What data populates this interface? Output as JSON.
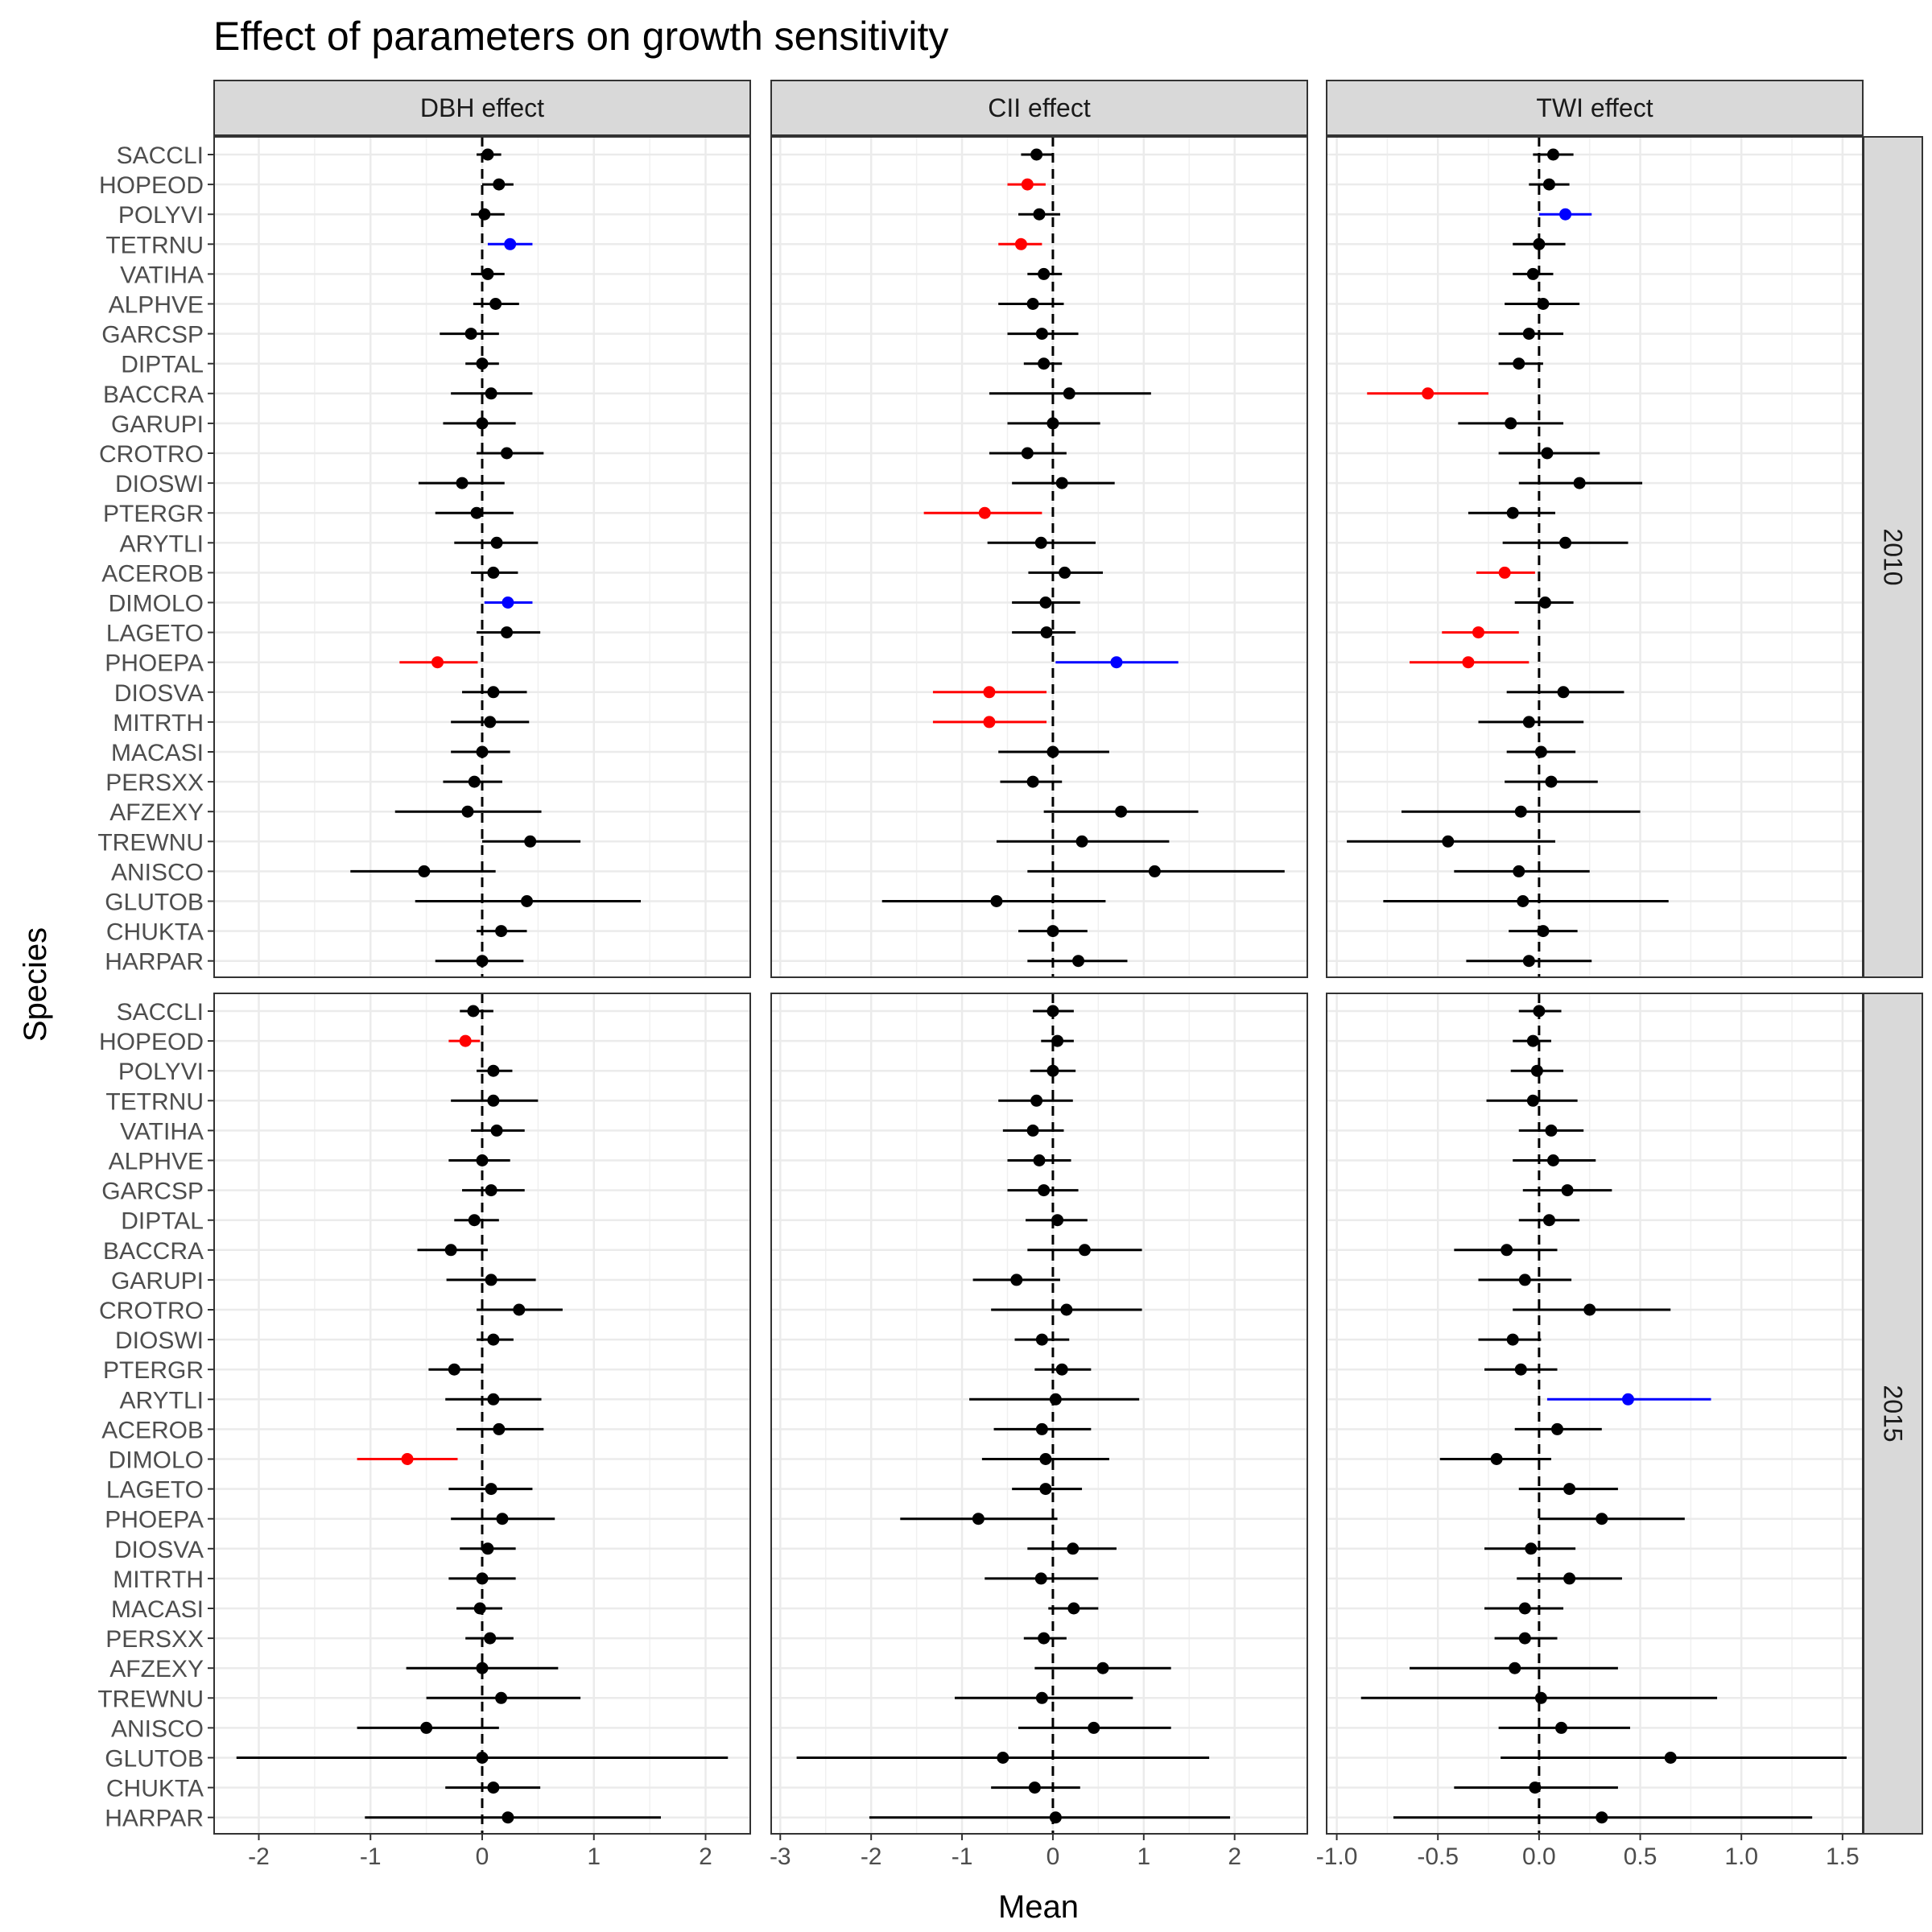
{
  "chart_data": {
    "type": "forest-plot",
    "title": "Effect of parameters on growth sensitivity",
    "xlabel": "Mean",
    "ylabel": "Species",
    "grid": true,
    "reference_line_x": 0,
    "species": [
      "SACCLI",
      "HOPEOD",
      "POLYVI",
      "TETRNU",
      "VATIHA",
      "ALPHVE",
      "GARCSP",
      "DIPTAL",
      "BACCRA",
      "GARUPI",
      "CROTRO",
      "DIOSWI",
      "PTERGR",
      "ARYTLI",
      "ACEROB",
      "DIMOLO",
      "LAGETO",
      "PHOEPA",
      "DIOSVA",
      "MITRTH",
      "MACASI",
      "PERSXX",
      "AFZEXY",
      "TREWNU",
      "ANISCO",
      "GLUTOB",
      "CHUKTA",
      "HARPAR"
    ],
    "colors": {
      "none": "#000000",
      "negative": "#ff0000",
      "positive": "#0000ff"
    },
    "columns": [
      {
        "label": "DBH effect",
        "xlim": [
          -2.4,
          2.4
        ],
        "ticks": [
          -2,
          -1,
          0,
          1,
          2
        ],
        "tick_labels": [
          "-2",
          "-1",
          "0",
          "1",
          "2"
        ]
      },
      {
        "label": "CII effect",
        "xlim": [
          -3.1,
          2.8
        ],
        "ticks": [
          -3,
          -2,
          -1,
          0,
          1,
          2
        ],
        "tick_labels": [
          "-3",
          "-2",
          "-1",
          "0",
          "1",
          "2"
        ]
      },
      {
        "label": "TWI effect",
        "xlim": [
          -1.05,
          1.6
        ],
        "ticks": [
          -1,
          -0.5,
          0,
          0.5,
          1,
          1.5
        ],
        "tick_labels": [
          "-1.0",
          "-0.5",
          "0.0",
          "0.5",
          "1.0",
          "1.5"
        ]
      }
    ],
    "rows": [
      {
        "label": "2010"
      },
      {
        "label": "2015"
      }
    ],
    "panels": [
      {
        "row": 0,
        "col": 0,
        "points": [
          [
            0.05,
            -0.05,
            0.17,
            "none"
          ],
          [
            0.15,
            0.0,
            0.28,
            "none"
          ],
          [
            0.02,
            -0.1,
            0.2,
            "none"
          ],
          [
            0.25,
            0.05,
            0.45,
            "positive"
          ],
          [
            0.05,
            -0.1,
            0.2,
            "none"
          ],
          [
            0.12,
            -0.08,
            0.33,
            "none"
          ],
          [
            -0.1,
            -0.38,
            0.15,
            "none"
          ],
          [
            0.0,
            -0.15,
            0.15,
            "none"
          ],
          [
            0.08,
            -0.28,
            0.45,
            "none"
          ],
          [
            0.0,
            -0.35,
            0.3,
            "none"
          ],
          [
            0.22,
            -0.05,
            0.55,
            "none"
          ],
          [
            -0.18,
            -0.57,
            0.2,
            "none"
          ],
          [
            -0.05,
            -0.42,
            0.28,
            "none"
          ],
          [
            0.13,
            -0.25,
            0.5,
            "none"
          ],
          [
            0.1,
            -0.1,
            0.32,
            "none"
          ],
          [
            0.23,
            0.02,
            0.45,
            "positive"
          ],
          [
            0.22,
            -0.05,
            0.52,
            "none"
          ],
          [
            -0.4,
            -0.74,
            -0.04,
            "negative"
          ],
          [
            0.1,
            -0.18,
            0.4,
            "none"
          ],
          [
            0.07,
            -0.28,
            0.42,
            "none"
          ],
          [
            0.0,
            -0.28,
            0.25,
            "none"
          ],
          [
            -0.07,
            -0.35,
            0.18,
            "none"
          ],
          [
            -0.13,
            -0.78,
            0.53,
            "none"
          ],
          [
            0.43,
            0.0,
            0.88,
            "none"
          ],
          [
            -0.52,
            -1.18,
            0.12,
            "none"
          ],
          [
            0.4,
            -0.6,
            1.42,
            "none"
          ],
          [
            0.17,
            -0.05,
            0.4,
            "none"
          ],
          [
            0.0,
            -0.42,
            0.37,
            "none"
          ]
        ]
      },
      {
        "row": 0,
        "col": 1,
        "points": [
          [
            -0.18,
            -0.35,
            0.0,
            "none"
          ],
          [
            -0.28,
            -0.5,
            -0.08,
            "negative"
          ],
          [
            -0.15,
            -0.38,
            0.08,
            "none"
          ],
          [
            -0.35,
            -0.6,
            -0.12,
            "negative"
          ],
          [
            -0.1,
            -0.28,
            0.1,
            "none"
          ],
          [
            -0.22,
            -0.6,
            0.12,
            "none"
          ],
          [
            -0.12,
            -0.5,
            0.28,
            "none"
          ],
          [
            -0.1,
            -0.32,
            0.1,
            "none"
          ],
          [
            0.18,
            -0.7,
            1.08,
            "none"
          ],
          [
            0.0,
            -0.5,
            0.52,
            "none"
          ],
          [
            -0.28,
            -0.7,
            0.15,
            "none"
          ],
          [
            0.1,
            -0.45,
            0.68,
            "none"
          ],
          [
            -0.75,
            -1.42,
            -0.12,
            "negative"
          ],
          [
            -0.13,
            -0.72,
            0.47,
            "none"
          ],
          [
            0.13,
            -0.27,
            0.55,
            "none"
          ],
          [
            -0.08,
            -0.45,
            0.3,
            "none"
          ],
          [
            -0.07,
            -0.45,
            0.25,
            "none"
          ],
          [
            0.7,
            0.03,
            1.38,
            "positive"
          ],
          [
            -0.7,
            -1.32,
            -0.07,
            "negative"
          ],
          [
            -0.7,
            -1.32,
            -0.07,
            "negative"
          ],
          [
            0.0,
            -0.6,
            0.62,
            "none"
          ],
          [
            -0.22,
            -0.58,
            0.1,
            "none"
          ],
          [
            0.75,
            -0.1,
            1.6,
            "none"
          ],
          [
            0.32,
            -0.62,
            1.28,
            "none"
          ],
          [
            1.12,
            -0.28,
            2.55,
            "none"
          ],
          [
            -0.62,
            -1.88,
            0.58,
            "none"
          ],
          [
            0.0,
            -0.38,
            0.38,
            "none"
          ],
          [
            0.28,
            -0.28,
            0.82,
            "none"
          ]
        ]
      },
      {
        "row": 0,
        "col": 2,
        "points": [
          [
            0.07,
            -0.03,
            0.17,
            "none"
          ],
          [
            0.05,
            -0.05,
            0.15,
            "none"
          ],
          [
            0.13,
            0.0,
            0.26,
            "positive"
          ],
          [
            0.0,
            -0.13,
            0.13,
            "none"
          ],
          [
            -0.03,
            -0.13,
            0.07,
            "none"
          ],
          [
            0.02,
            -0.17,
            0.2,
            "none"
          ],
          [
            -0.05,
            -0.2,
            0.12,
            "none"
          ],
          [
            -0.1,
            -0.2,
            0.02,
            "none"
          ],
          [
            -0.55,
            -0.85,
            -0.25,
            "negative"
          ],
          [
            -0.14,
            -0.4,
            0.12,
            "none"
          ],
          [
            0.04,
            -0.2,
            0.3,
            "none"
          ],
          [
            0.2,
            -0.1,
            0.51,
            "none"
          ],
          [
            -0.13,
            -0.35,
            0.08,
            "none"
          ],
          [
            0.13,
            -0.18,
            0.44,
            "none"
          ],
          [
            -0.17,
            -0.31,
            -0.02,
            "negative"
          ],
          [
            0.03,
            -0.12,
            0.17,
            "none"
          ],
          [
            -0.3,
            -0.48,
            -0.1,
            "negative"
          ],
          [
            -0.35,
            -0.64,
            -0.05,
            "negative"
          ],
          [
            0.12,
            -0.16,
            0.42,
            "none"
          ],
          [
            -0.05,
            -0.3,
            0.22,
            "none"
          ],
          [
            0.01,
            -0.16,
            0.18,
            "none"
          ],
          [
            0.06,
            -0.17,
            0.29,
            "none"
          ],
          [
            -0.09,
            -0.68,
            0.5,
            "none"
          ],
          [
            -0.45,
            -0.95,
            0.08,
            "none"
          ],
          [
            -0.1,
            -0.42,
            0.25,
            "none"
          ],
          [
            -0.08,
            -0.77,
            0.64,
            "none"
          ],
          [
            0.02,
            -0.15,
            0.19,
            "none"
          ],
          [
            -0.05,
            -0.36,
            0.26,
            "none"
          ]
        ]
      },
      {
        "row": 1,
        "col": 0,
        "points": [
          [
            -0.08,
            -0.2,
            0.1,
            "none"
          ],
          [
            -0.15,
            -0.3,
            -0.02,
            "negative"
          ],
          [
            0.1,
            -0.05,
            0.27,
            "none"
          ],
          [
            0.1,
            -0.28,
            0.5,
            "none"
          ],
          [
            0.13,
            -0.1,
            0.38,
            "none"
          ],
          [
            0.0,
            -0.3,
            0.25,
            "none"
          ],
          [
            0.08,
            -0.18,
            0.38,
            "none"
          ],
          [
            -0.07,
            -0.25,
            0.15,
            "none"
          ],
          [
            -0.28,
            -0.58,
            0.05,
            "none"
          ],
          [
            0.08,
            -0.32,
            0.48,
            "none"
          ],
          [
            0.33,
            -0.05,
            0.72,
            "none"
          ],
          [
            0.1,
            -0.05,
            0.28,
            "none"
          ],
          [
            -0.25,
            -0.48,
            0.0,
            "none"
          ],
          [
            0.1,
            -0.33,
            0.53,
            "none"
          ],
          [
            0.15,
            -0.23,
            0.55,
            "none"
          ],
          [
            -0.67,
            -1.12,
            -0.22,
            "negative"
          ],
          [
            0.08,
            -0.3,
            0.45,
            "none"
          ],
          [
            0.18,
            -0.28,
            0.65,
            "none"
          ],
          [
            0.05,
            -0.2,
            0.3,
            "none"
          ],
          [
            0.0,
            -0.3,
            0.3,
            "none"
          ],
          [
            -0.02,
            -0.23,
            0.18,
            "none"
          ],
          [
            0.07,
            -0.15,
            0.28,
            "none"
          ],
          [
            0.0,
            -0.68,
            0.68,
            "none"
          ],
          [
            0.17,
            -0.5,
            0.88,
            "none"
          ],
          [
            -0.5,
            -1.12,
            0.15,
            "none"
          ],
          [
            0.0,
            -2.2,
            2.2,
            "none"
          ],
          [
            0.1,
            -0.33,
            0.52,
            "none"
          ],
          [
            0.23,
            -1.05,
            1.6,
            "none"
          ]
        ]
      },
      {
        "row": 1,
        "col": 1,
        "points": [
          [
            0.0,
            -0.22,
            0.23,
            "none"
          ],
          [
            0.05,
            -0.13,
            0.23,
            "none"
          ],
          [
            0.0,
            -0.25,
            0.25,
            "none"
          ],
          [
            -0.18,
            -0.6,
            0.22,
            "none"
          ],
          [
            -0.22,
            -0.55,
            0.12,
            "none"
          ],
          [
            -0.15,
            -0.5,
            0.2,
            "none"
          ],
          [
            -0.1,
            -0.5,
            0.28,
            "none"
          ],
          [
            0.05,
            -0.3,
            0.38,
            "none"
          ],
          [
            0.35,
            -0.28,
            0.98,
            "none"
          ],
          [
            -0.4,
            -0.88,
            0.08,
            "none"
          ],
          [
            0.15,
            -0.68,
            0.98,
            "none"
          ],
          [
            -0.12,
            -0.42,
            0.18,
            "none"
          ],
          [
            0.1,
            -0.2,
            0.42,
            "none"
          ],
          [
            0.03,
            -0.92,
            0.95,
            "none"
          ],
          [
            -0.12,
            -0.65,
            0.42,
            "none"
          ],
          [
            -0.08,
            -0.78,
            0.62,
            "none"
          ],
          [
            -0.08,
            -0.45,
            0.32,
            "none"
          ],
          [
            -0.82,
            -1.68,
            0.05,
            "none"
          ],
          [
            0.22,
            -0.28,
            0.7,
            "none"
          ],
          [
            -0.13,
            -0.75,
            0.5,
            "none"
          ],
          [
            0.23,
            -0.05,
            0.5,
            "none"
          ],
          [
            -0.1,
            -0.32,
            0.15,
            "none"
          ],
          [
            0.55,
            -0.2,
            1.3,
            "none"
          ],
          [
            -0.12,
            -1.08,
            0.88,
            "none"
          ],
          [
            0.45,
            -0.38,
            1.3,
            "none"
          ],
          [
            -0.55,
            -2.82,
            1.72,
            "none"
          ],
          [
            -0.2,
            -0.68,
            0.3,
            "none"
          ],
          [
            0.03,
            -2.02,
            1.95,
            "none"
          ]
        ]
      },
      {
        "row": 1,
        "col": 2,
        "points": [
          [
            0.0,
            -0.1,
            0.11,
            "none"
          ],
          [
            -0.03,
            -0.13,
            0.06,
            "none"
          ],
          [
            -0.01,
            -0.14,
            0.12,
            "none"
          ],
          [
            -0.03,
            -0.26,
            0.19,
            "none"
          ],
          [
            0.06,
            -0.1,
            0.22,
            "none"
          ],
          [
            0.07,
            -0.13,
            0.28,
            "none"
          ],
          [
            0.14,
            -0.08,
            0.36,
            "none"
          ],
          [
            0.05,
            -0.1,
            0.2,
            "none"
          ],
          [
            -0.16,
            -0.42,
            0.09,
            "none"
          ],
          [
            -0.07,
            -0.3,
            0.16,
            "none"
          ],
          [
            0.25,
            -0.13,
            0.65,
            "none"
          ],
          [
            -0.13,
            -0.3,
            0.01,
            "none"
          ],
          [
            -0.09,
            -0.27,
            0.09,
            "none"
          ],
          [
            0.44,
            0.04,
            0.85,
            "positive"
          ],
          [
            0.09,
            -0.12,
            0.31,
            "none"
          ],
          [
            -0.21,
            -0.49,
            0.06,
            "none"
          ],
          [
            0.15,
            -0.1,
            0.39,
            "none"
          ],
          [
            0.31,
            0.0,
            0.72,
            "none"
          ],
          [
            -0.04,
            -0.27,
            0.18,
            "none"
          ],
          [
            0.15,
            -0.11,
            0.41,
            "none"
          ],
          [
            -0.07,
            -0.27,
            0.12,
            "none"
          ],
          [
            -0.07,
            -0.22,
            0.09,
            "none"
          ],
          [
            -0.12,
            -0.64,
            0.39,
            "none"
          ],
          [
            0.01,
            -0.88,
            0.88,
            "none"
          ],
          [
            0.11,
            -0.2,
            0.45,
            "none"
          ],
          [
            0.65,
            -0.19,
            1.52,
            "none"
          ],
          [
            -0.02,
            -0.42,
            0.39,
            "none"
          ],
          [
            0.31,
            -0.72,
            1.35,
            "none"
          ]
        ]
      }
    ]
  }
}
